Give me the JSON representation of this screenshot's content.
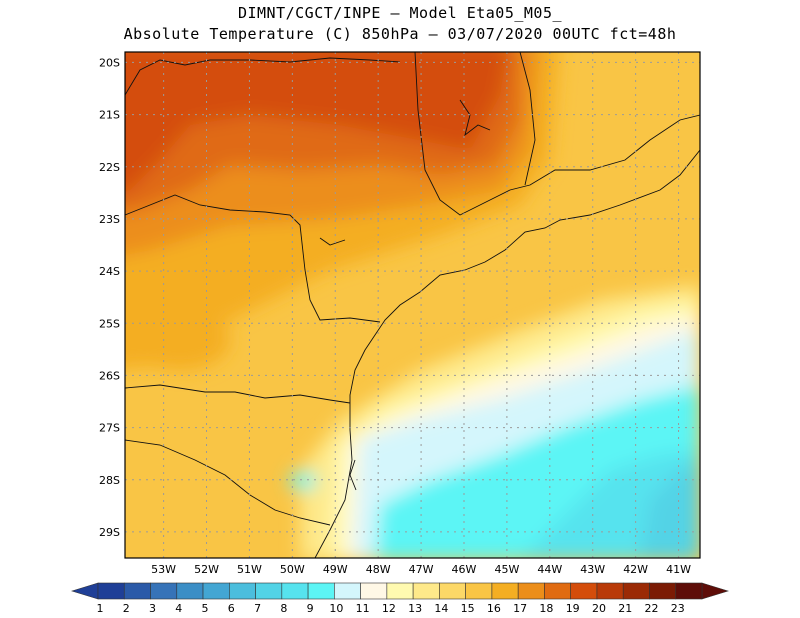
{
  "title": {
    "line1": "DIMNT/CGCT/INPE –  Model Eta05_M05_",
    "line2": "Absolute Temperature (C) 850hPa –  03/07/2020 00UTC fct=48h"
  },
  "map": {
    "lat_labels": [
      "20S",
      "21S",
      "22S",
      "23S",
      "24S",
      "25S",
      "26S",
      "27S",
      "28S",
      "29S"
    ],
    "lon_labels": [
      "53W",
      "52W",
      "51W",
      "50W",
      "49W",
      "48W",
      "47W",
      "46W",
      "45W",
      "44W",
      "43W",
      "42W",
      "41W"
    ],
    "lat_range": [
      -29.5,
      -19.8
    ],
    "lon_range": [
      -53.9,
      -40.5
    ],
    "grid": "dotted"
  },
  "colorbar": {
    "labels": [
      "1",
      "2",
      "3",
      "4",
      "5",
      "6",
      "7",
      "8",
      "9",
      "10",
      "11",
      "12",
      "13",
      "14",
      "15",
      "16",
      "17",
      "18",
      "19",
      "20",
      "21",
      "22",
      "23"
    ],
    "colors": [
      "#1f3f97",
      "#2b5aa8",
      "#3673b8",
      "#3b8ec6",
      "#43a6d3",
      "#4bbedd",
      "#52d3e6",
      "#56e3ee",
      "#5cf5f5",
      "#d4f6fc",
      "#fff8e6",
      "#fffab0",
      "#fee98a",
      "#fcd867",
      "#f9c545",
      "#f4ae22",
      "#ec8e1a",
      "#e06b12",
      "#d44d0b",
      "#b93a08",
      "#9b2a05",
      "#7b1b04",
      "#5e0d08"
    ],
    "min": 1,
    "max": 23
  }
}
